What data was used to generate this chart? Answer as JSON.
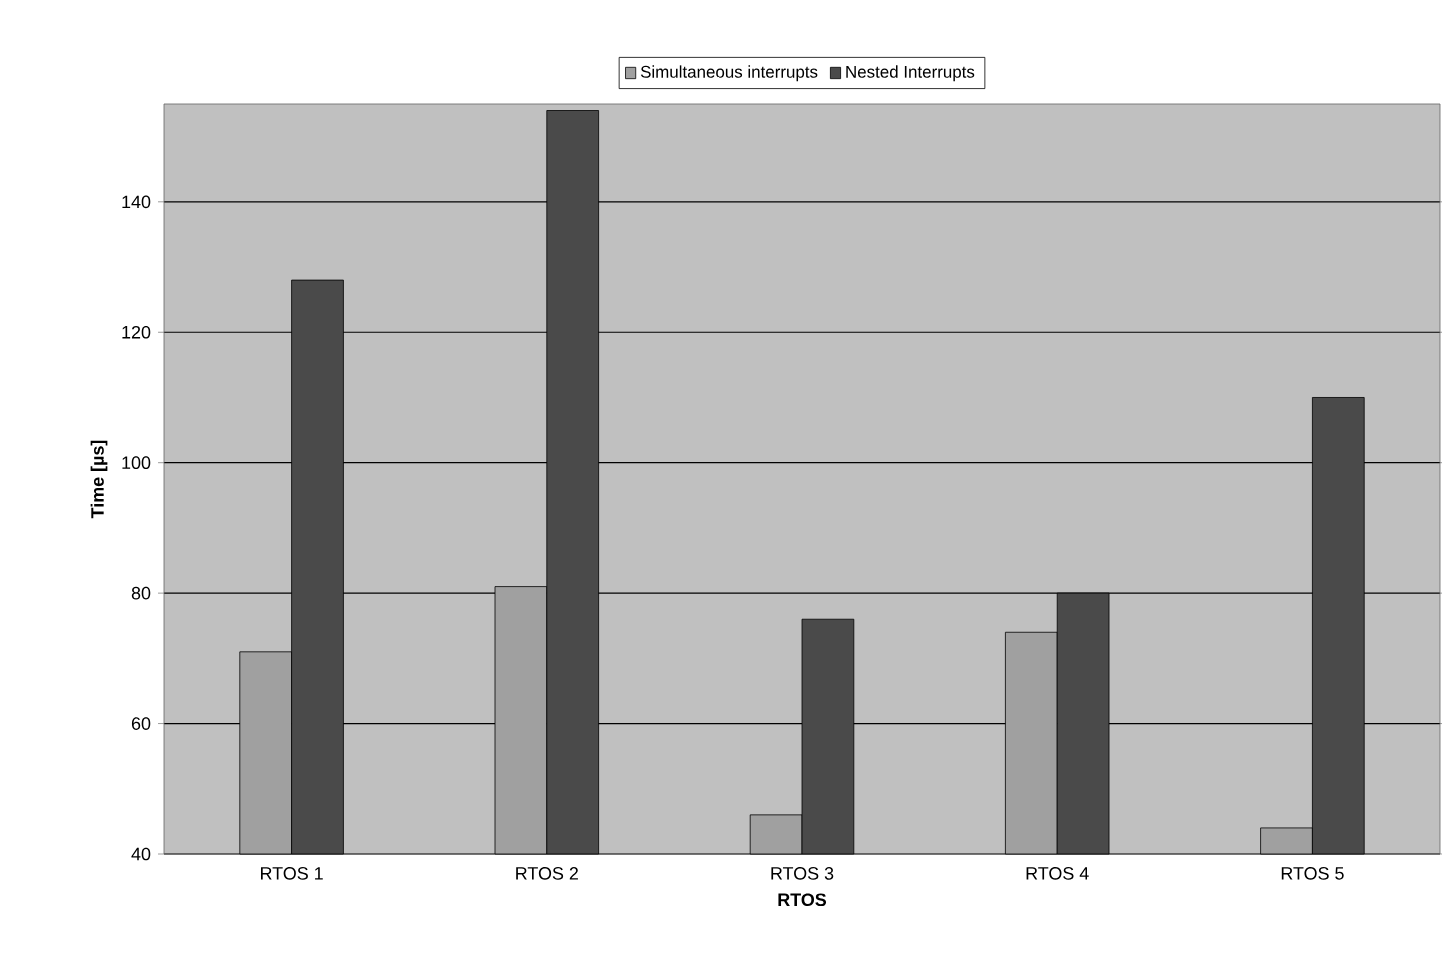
{
  "chart_data": {
    "type": "bar",
    "xlabel": "RTOS",
    "ylabel": "Time [µs]",
    "categories": [
      "RTOS 1",
      "RTOS 2",
      "RTOS 3",
      "RTOS 4",
      "RTOS 5"
    ],
    "series": [
      {
        "name": "Simultaneous interrupts",
        "color": "#a0a0a0",
        "values": [
          71,
          81,
          46,
          74,
          44
        ]
      },
      {
        "name": "Nested Interrupts",
        "color": "#4a4a4a",
        "values": [
          128,
          154,
          76,
          80,
          110
        ]
      }
    ],
    "ylim": [
      40,
      155
    ],
    "yticks": [
      40,
      60,
      80,
      100,
      120,
      140
    ],
    "grid": "y",
    "legend": "top"
  }
}
